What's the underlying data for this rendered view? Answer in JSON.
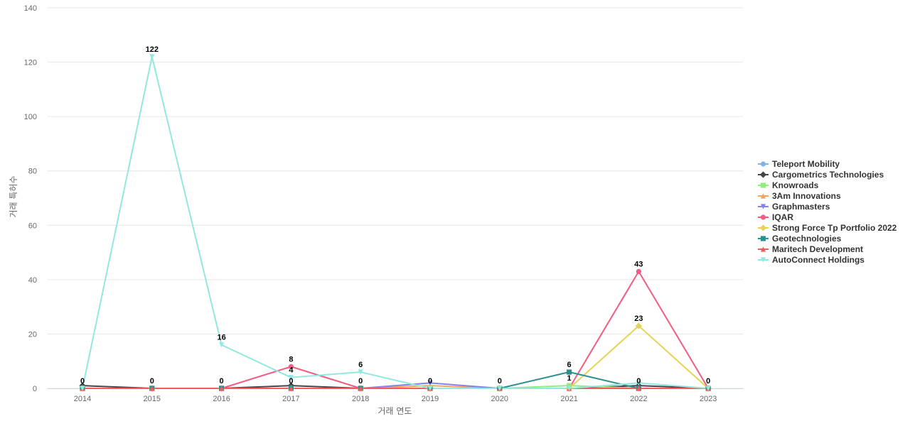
{
  "chart_data": {
    "type": "line",
    "xlabel": "거래 연도",
    "ylabel": "거래 특허수",
    "ylim": [
      0,
      140
    ],
    "yticks": [
      0,
      20,
      40,
      60,
      80,
      100,
      120,
      140
    ],
    "categories": [
      "2014",
      "2015",
      "2016",
      "2017",
      "2018",
      "2019",
      "2020",
      "2021",
      "2022",
      "2023"
    ],
    "grid": true,
    "legend_position": "right",
    "series": [
      {
        "name": "Teleport Mobility",
        "color": "#7cb5ec",
        "marker": "circle",
        "values": [
          0,
          0,
          0,
          0,
          0,
          0,
          0,
          0,
          0,
          0
        ]
      },
      {
        "name": "Cargometrics Technologies",
        "color": "#434348",
        "marker": "diamond",
        "values": [
          1,
          0,
          0,
          1,
          0,
          0,
          0,
          0,
          1,
          0
        ]
      },
      {
        "name": "Knowroads",
        "color": "#90ed7d",
        "marker": "square",
        "values": [
          0,
          0,
          0,
          0,
          0,
          0,
          0,
          1,
          0,
          0
        ]
      },
      {
        "name": "3Am Innovations",
        "color": "#f7a35c",
        "marker": "triangle",
        "values": [
          0,
          0,
          0,
          0,
          0,
          1,
          0,
          0,
          0,
          0
        ]
      },
      {
        "name": "Graphmasters",
        "color": "#8085e9",
        "marker": "triangle-down",
        "values": [
          0,
          0,
          0,
          0,
          0,
          2,
          0,
          0,
          0,
          0
        ]
      },
      {
        "name": "IQAR",
        "color": "#f15c80",
        "marker": "circle",
        "values": [
          0,
          0,
          0,
          8,
          0,
          0,
          0,
          0,
          43,
          0
        ]
      },
      {
        "name": "Strong Force Tp Portfolio 2022",
        "color": "#e4d354",
        "marker": "diamond",
        "values": [
          0,
          0,
          0,
          0,
          0,
          0,
          0,
          0,
          23,
          0
        ]
      },
      {
        "name": "Geotechnologies",
        "color": "#2b908f",
        "marker": "square",
        "values": [
          0,
          0,
          0,
          0,
          0,
          0,
          0,
          6,
          0,
          0
        ]
      },
      {
        "name": "Maritech Development",
        "color": "#f45b5b",
        "marker": "triangle",
        "values": [
          0,
          0,
          0,
          0,
          0,
          0,
          0,
          0,
          0,
          0
        ]
      },
      {
        "name": "AutoConnect Holdings",
        "color": "#91e8e1",
        "marker": "triangle-down",
        "values": [
          0,
          122,
          16,
          4,
          6,
          0,
          0,
          0,
          2,
          0
        ]
      }
    ],
    "data_labels": [
      {
        "category": "2014",
        "value": 0,
        "text": "0"
      },
      {
        "category": "2015",
        "value": 122,
        "text": "122"
      },
      {
        "category": "2015",
        "value": 0,
        "text": "0"
      },
      {
        "category": "2016",
        "value": 16,
        "text": "16"
      },
      {
        "category": "2016",
        "value": 0,
        "text": "0"
      },
      {
        "category": "2017",
        "value": 8,
        "text": "8"
      },
      {
        "category": "2017",
        "value": 4,
        "text": "4"
      },
      {
        "category": "2017",
        "value": 0,
        "text": "0"
      },
      {
        "category": "2018",
        "value": 6,
        "text": "6"
      },
      {
        "category": "2018",
        "value": 0,
        "text": "0"
      },
      {
        "category": "2019",
        "value": 0,
        "text": "0"
      },
      {
        "category": "2020",
        "value": 0,
        "text": "0"
      },
      {
        "category": "2021",
        "value": 6,
        "text": "6"
      },
      {
        "category": "2021",
        "value": 1,
        "text": "1"
      },
      {
        "category": "2022",
        "value": 43,
        "text": "43"
      },
      {
        "category": "2022",
        "value": 23,
        "text": "23"
      },
      {
        "category": "2022",
        "value": 0,
        "text": "0"
      },
      {
        "category": "2023",
        "value": 0,
        "text": "0"
      }
    ]
  }
}
